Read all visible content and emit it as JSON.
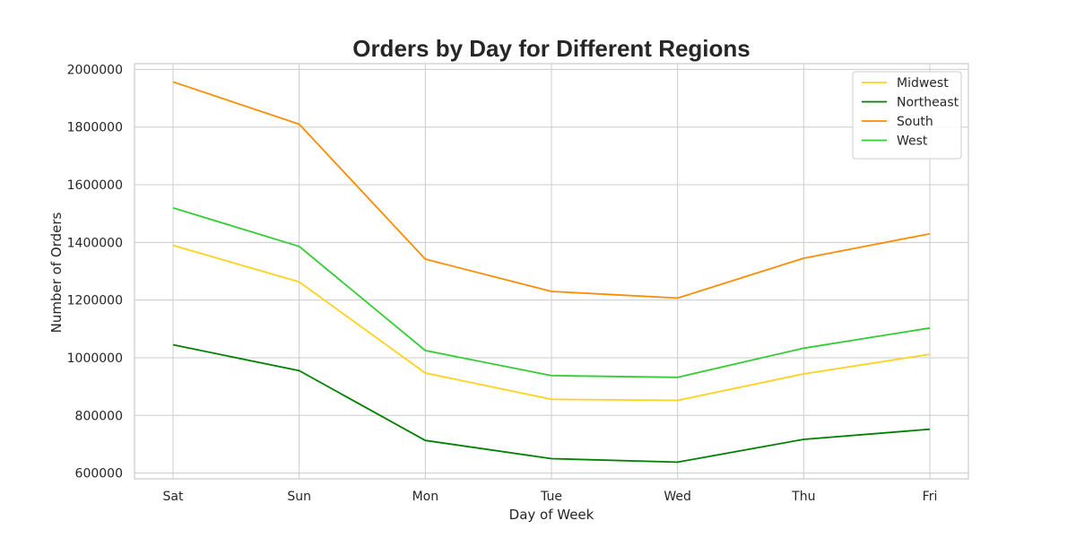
{
  "chart_data": {
    "type": "line",
    "title": "Orders by Day for Different Regions",
    "xlabel": "Day of Week",
    "ylabel": "Number of Orders",
    "categories": [
      "Sat",
      "Sun",
      "Mon",
      "Tue",
      "Wed",
      "Thu",
      "Fri"
    ],
    "ylim": [
      580000,
      2020000
    ],
    "yticks": [
      600000,
      800000,
      1000000,
      1200000,
      1400000,
      1600000,
      1800000,
      2000000
    ],
    "grid": true,
    "legend_position": "top-right",
    "series": [
      {
        "name": "Midwest",
        "color": "#ffd21f",
        "values": [
          1390000,
          1263000,
          947000,
          856000,
          852000,
          944000,
          1012000
        ]
      },
      {
        "name": "Northeast",
        "color": "#008000",
        "values": [
          1045000,
          955000,
          713000,
          650000,
          638000,
          717000,
          752000
        ]
      },
      {
        "name": "South",
        "color": "#ff8c00",
        "values": [
          1957000,
          1810000,
          1342000,
          1230000,
          1207000,
          1345000,
          1430000
        ]
      },
      {
        "name": "West",
        "color": "#32cd32",
        "values": [
          1520000,
          1386000,
          1025000,
          938000,
          932000,
          1033000,
          1103000
        ]
      }
    ]
  }
}
